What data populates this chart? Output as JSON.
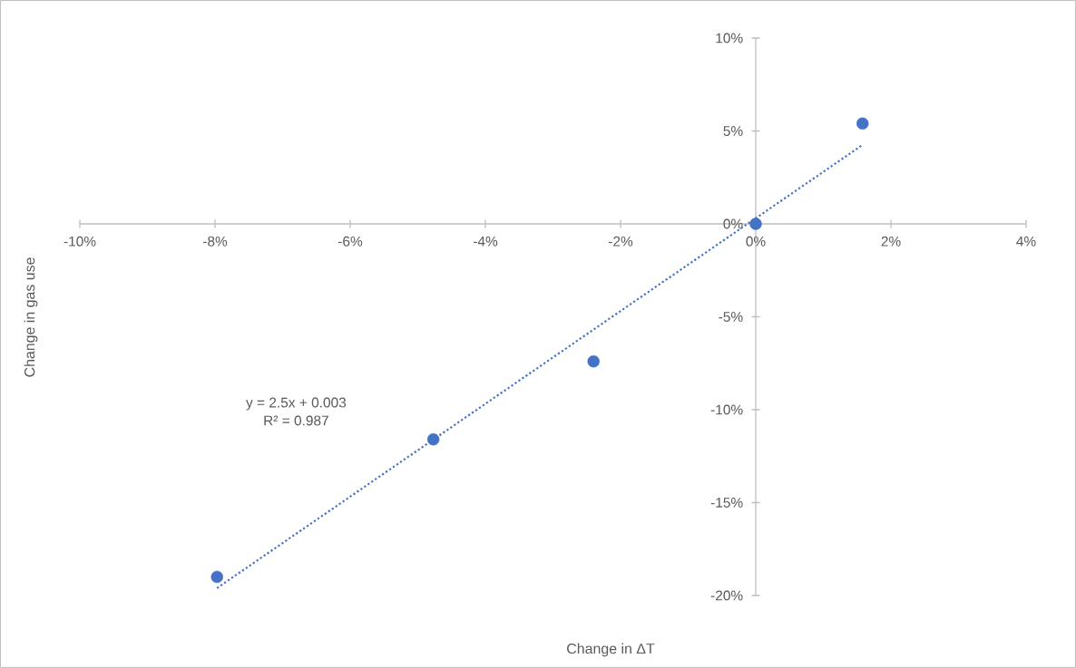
{
  "chart_data": {
    "type": "scatter",
    "xlabel": "Change in ΔT",
    "ylabel": "Change in gas use",
    "x": [
      -7.97,
      -4.77,
      -2.4,
      0,
      1.58
    ],
    "series": [
      {
        "color": "#4472c4",
        "marker": "circle",
        "values": [
          -19.0,
          -11.6,
          -7.4,
          0,
          5.4
        ]
      },
      {
        "type": "line",
        "color": "#4472c4",
        "line_style": "dotted",
        "marker": "none",
        "x": [
          -7.97,
          1.58
        ],
        "values": [
          -19.6,
          4.25
        ]
      }
    ],
    "xlim": [
      -10,
      4
    ],
    "ylim": [
      -20,
      10
    ],
    "xticks": [
      {
        "value": -10,
        "label": "-10%"
      },
      {
        "value": -8,
        "label": "-8%"
      },
      {
        "value": -6,
        "label": "-6%"
      },
      {
        "value": -4,
        "label": "-4%"
      },
      {
        "value": -2,
        "label": "-2%"
      },
      {
        "value": 0,
        "label": "0%"
      },
      {
        "value": 2,
        "label": "2%"
      },
      {
        "value": 4,
        "label": "4%"
      }
    ],
    "yticks": [
      {
        "value": -20,
        "label": "-20%"
      },
      {
        "value": -15,
        "label": "-15%"
      },
      {
        "value": -10,
        "label": "-10%"
      },
      {
        "value": -5,
        "label": "-5%"
      },
      {
        "value": 0,
        "label": "0%"
      },
      {
        "value": 5,
        "label": "5%"
      },
      {
        "value": 10,
        "label": "10%"
      }
    ],
    "annotations": [
      "y = 2.5x + 0.003",
      "R² = 0.987"
    ],
    "grid": false
  }
}
